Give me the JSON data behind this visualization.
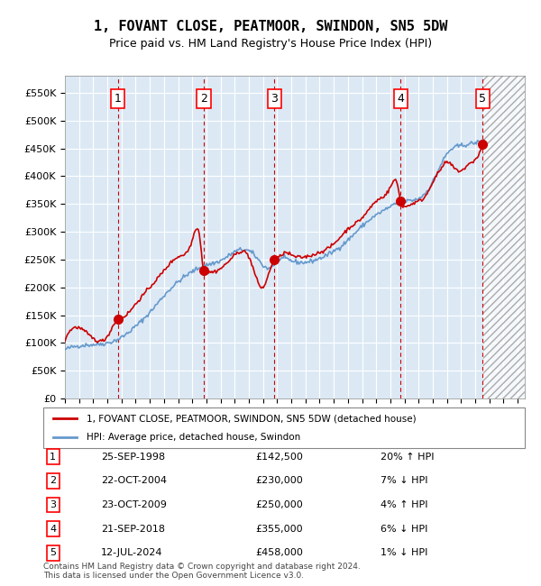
{
  "title": "1, FOVANT CLOSE, PEATMOOR, SWINDON, SN5 5DW",
  "subtitle": "Price paid vs. HM Land Registry's House Price Index (HPI)",
  "ylabel": "",
  "xlim_start": 1995.0,
  "xlim_end": 2027.5,
  "ylim_min": 0,
  "ylim_max": 580000,
  "yticks": [
    0,
    50000,
    100000,
    150000,
    200000,
    250000,
    300000,
    350000,
    400000,
    450000,
    500000,
    550000
  ],
  "ytick_labels": [
    "£0",
    "£50K",
    "£100K",
    "£150K",
    "£200K",
    "£250K",
    "£300K",
    "£350K",
    "£400K",
    "£450K",
    "£500K",
    "£550K"
  ],
  "xticks": [
    1995,
    1996,
    1997,
    1998,
    1999,
    2000,
    2001,
    2002,
    2003,
    2004,
    2005,
    2006,
    2007,
    2008,
    2009,
    2010,
    2011,
    2012,
    2013,
    2014,
    2015,
    2016,
    2017,
    2018,
    2019,
    2020,
    2021,
    2022,
    2023,
    2024,
    2025,
    2026,
    2027
  ],
  "sales": [
    {
      "num": 1,
      "date": "25-SEP-1998",
      "year": 1998.73,
      "price": 142500,
      "hpi_pct": "20% ↑ HPI"
    },
    {
      "num": 2,
      "date": "22-OCT-2004",
      "year": 2004.81,
      "price": 230000,
      "hpi_pct": "7% ↓ HPI"
    },
    {
      "num": 3,
      "date": "23-OCT-2009",
      "year": 2009.81,
      "price": 250000,
      "hpi_pct": "4% ↑ HPI"
    },
    {
      "num": 4,
      "date": "21-SEP-2018",
      "year": 2018.73,
      "price": 355000,
      "hpi_pct": "6% ↓ HPI"
    },
    {
      "num": 5,
      "date": "12-JUL-2024",
      "year": 2024.53,
      "price": 458000,
      "hpi_pct": "1% ↓ HPI"
    }
  ],
  "legend_label_red": "1, FOVANT CLOSE, PEATMOOR, SWINDON, SN5 5DW (detached house)",
  "legend_label_blue": "HPI: Average price, detached house, Swindon",
  "footer": "Contains HM Land Registry data © Crown copyright and database right 2024.\nThis data is licensed under the Open Government Licence v3.0.",
  "bg_color": "#dce9f5",
  "hatch_color": "#c0c0c0",
  "grid_color": "#ffffff",
  "red_line_color": "#cc0000",
  "blue_line_color": "#6699cc",
  "sale_marker_color": "#cc0000",
  "dashed_vline_color": "#cc0000",
  "future_cutoff_year": 2025.0
}
